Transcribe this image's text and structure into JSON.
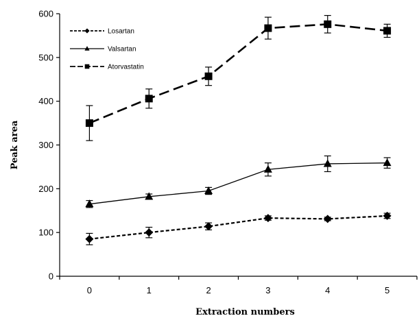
{
  "chart_data": {
    "type": "line",
    "title": "",
    "xlabel": "Extraction numbers",
    "ylabel": "Peak area",
    "x": [
      0,
      1,
      2,
      3,
      4,
      5
    ],
    "xlim": [
      -0.5,
      5.5
    ],
    "ylim": [
      0,
      600
    ],
    "xticks": [
      "0",
      "1",
      "2",
      "3",
      "4",
      "5"
    ],
    "yticks": [
      "0",
      "100",
      "200",
      "300",
      "400",
      "500",
      "600"
    ],
    "grid": false,
    "legend_position": "top-left",
    "series": [
      {
        "name": "Losartan",
        "marker": "diamond",
        "line_style": "short-dash",
        "values": [
          85,
          100,
          114,
          133,
          131,
          138
        ],
        "errors": [
          13,
          12,
          8,
          5,
          4,
          6
        ]
      },
      {
        "name": "Valsartan",
        "marker": "triangle",
        "line_style": "solid",
        "values": [
          165,
          182,
          195,
          244,
          257,
          259
        ],
        "errors": [
          8,
          6,
          8,
          15,
          18,
          12
        ]
      },
      {
        "name": "Atorvastatin",
        "marker": "square",
        "line_style": "long-dash",
        "values": [
          350,
          406,
          457,
          567,
          576,
          561
        ],
        "errors": [
          40,
          22,
          21,
          25,
          20,
          15
        ]
      }
    ]
  }
}
